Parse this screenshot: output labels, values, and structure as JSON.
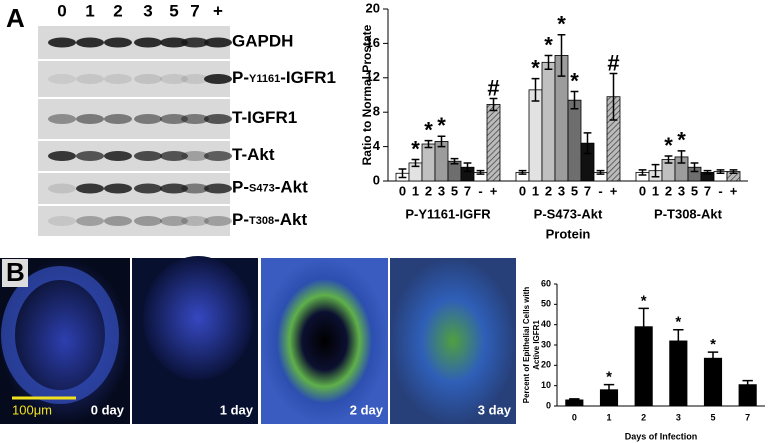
{
  "panel_labels": [
    "A",
    "B"
  ],
  "blot": {
    "lanes": [
      "0",
      "1",
      "2",
      "3",
      "5",
      "7",
      "+"
    ],
    "rows": [
      {
        "label": [
          "GAPDH"
        ]
      },
      {
        "label": [
          "P-",
          "Y1161",
          "-IGFR1"
        ]
      },
      {
        "label": [
          "T-IGFR1"
        ]
      },
      {
        "label": [
          "T-Akt"
        ]
      },
      {
        "label": [
          "P-",
          "S473",
          "-Akt"
        ]
      },
      {
        "label": [
          "P-",
          "T308",
          "-Akt"
        ]
      }
    ]
  },
  "micrographs": [
    {
      "label": "0 day"
    },
    {
      "label": "1 day"
    },
    {
      "label": "2 day"
    },
    {
      "label": "3 day"
    }
  ],
  "scale_bar": "100μm",
  "chart_data": [
    {
      "type": "bar",
      "ylabel": "Ratio to Normal Prostate",
      "xlabel": "Protein",
      "categories": [
        "P-Y1161-IGFR",
        "P-S473-Akt",
        "P-T308-Akt"
      ],
      "ylim": [
        0,
        20
      ],
      "yticks": [
        0,
        4,
        8,
        12,
        16,
        20
      ],
      "series": [
        {
          "name": "0",
          "color": "#ffffff",
          "values": [
            0.9,
            1.0,
            1.0
          ],
          "errors": [
            0.5,
            0.2,
            0.3
          ],
          "annotations": [
            null,
            null,
            null
          ]
        },
        {
          "name": "1",
          "color": "#e2e2e2",
          "values": [
            2.1,
            10.6,
            1.2
          ],
          "errors": [
            0.4,
            1.3,
            0.7
          ],
          "annotations": [
            "*",
            "*",
            null
          ]
        },
        {
          "name": "2",
          "color": "#c0c0c0",
          "values": [
            4.3,
            13.8,
            2.5
          ],
          "errors": [
            0.4,
            0.8,
            0.4
          ],
          "annotations": [
            "*",
            "*",
            "*"
          ]
        },
        {
          "name": "3",
          "color": "#9c9c9c",
          "values": [
            4.6,
            14.6,
            2.8
          ],
          "errors": [
            0.6,
            2.4,
            0.7
          ],
          "annotations": [
            "*",
            "*",
            "*"
          ]
        },
        {
          "name": "5",
          "color": "#6e6e6e",
          "values": [
            2.3,
            9.4,
            1.6
          ],
          "errors": [
            0.3,
            1.0,
            0.5
          ],
          "annotations": [
            null,
            "*",
            null
          ]
        },
        {
          "name": "7",
          "color": "#111111",
          "values": [
            1.6,
            4.4,
            1.0
          ],
          "errors": [
            0.5,
            1.2,
            0.2
          ],
          "annotations": [
            null,
            null,
            null
          ]
        },
        {
          "name": "-",
          "color": "#ffffff",
          "values": [
            1.0,
            1.0,
            1.1
          ],
          "errors": [
            0.2,
            0.2,
            0.2
          ],
          "annotations": [
            null,
            null,
            null
          ]
        },
        {
          "name": "+",
          "color": "#9a9a9a",
          "pattern": "hatched",
          "values": [
            8.9,
            9.8,
            1.1
          ],
          "errors": [
            0.7,
            2.7,
            0.2
          ],
          "annotations": [
            "#",
            "#",
            null
          ]
        }
      ]
    },
    {
      "type": "bar",
      "ylabel": [
        "Percent of Epithelial Cells with",
        "Active IGFR1"
      ],
      "xlabel": "Days of Infection",
      "categories": [
        "0",
        "1",
        "2",
        "3",
        "5",
        "7"
      ],
      "values": [
        3,
        8,
        39,
        32,
        23.5,
        10.5
      ],
      "errors": [
        0.5,
        2.5,
        9,
        5.5,
        3,
        2
      ],
      "annotations": [
        null,
        "*",
        "*",
        "*",
        "*",
        null
      ],
      "color": "#000000",
      "ylim": [
        0,
        60
      ],
      "yticks": [
        0,
        10,
        20,
        30,
        40,
        50,
        60
      ]
    }
  ]
}
